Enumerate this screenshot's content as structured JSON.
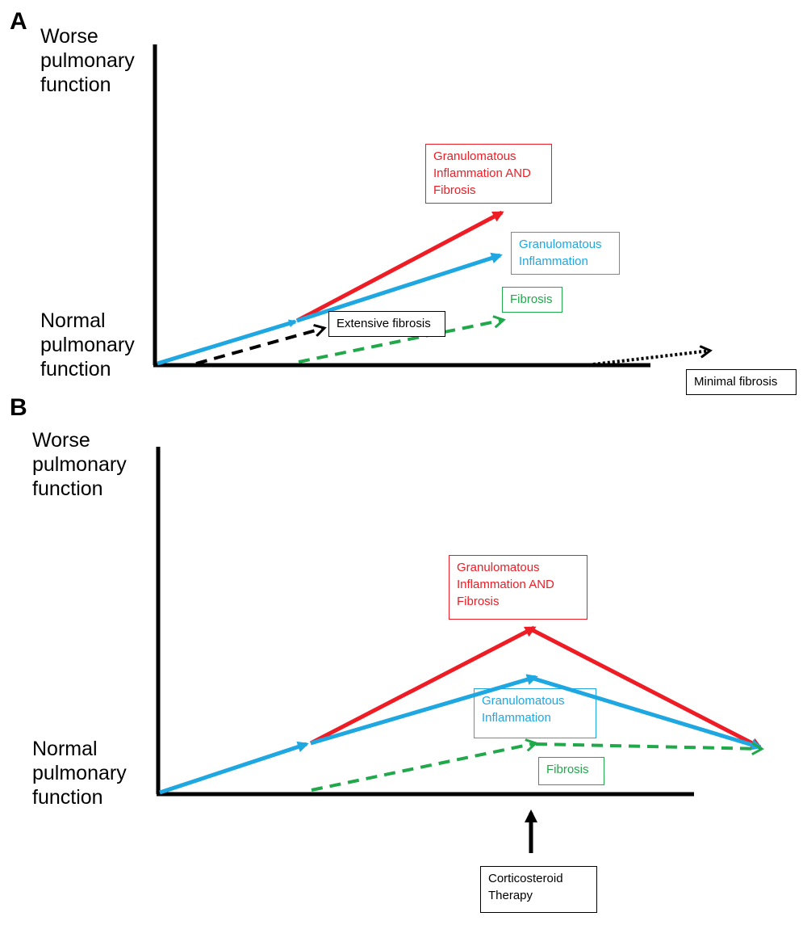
{
  "colors": {
    "red": "#ee1c24",
    "blue": "#1ea7e1",
    "green": "#20a84a",
    "black": "#000000"
  },
  "panel_a": {
    "letter": "A",
    "y_top_label": "Worse\npulmonary\nfunction",
    "y_bottom_label": "Normal\npulmonary\nfunction",
    "labels": {
      "granulomatous_and_fibrosis": "Granulomatous\nInflammation AND\nFibrosis",
      "granulomatous": "Granulomatous\nInflammation",
      "fibrosis": "Fibrosis",
      "extensive_fibrosis": "Extensive fibrosis",
      "minimal_fibrosis": "Minimal fibrosis"
    }
  },
  "panel_b": {
    "letter": "B",
    "y_top_label": "Worse\npulmonary\nfunction",
    "y_bottom_label": "Normal\npulmonary\nfunction",
    "labels": {
      "granulomatous_and_fibrosis": "Granulomatous\nInflammation AND\nFibrosis",
      "granulomatous": "Granulomatous\nInflammation",
      "fibrosis": "Fibrosis",
      "therapy": "Corticosteroid\nTherapy"
    }
  }
}
